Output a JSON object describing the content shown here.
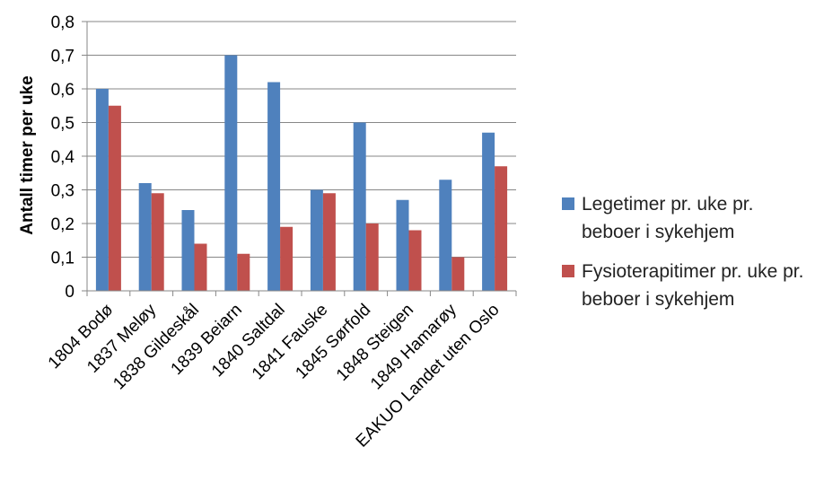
{
  "chart_data": {
    "type": "bar",
    "title": "",
    "xlabel": "",
    "ylabel": "Antall timer per uke",
    "ylim": [
      0,
      0.8
    ],
    "yticks": [
      "0",
      "0,1",
      "0,2",
      "0,3",
      "0,4",
      "0,5",
      "0,6",
      "0,7",
      "0,8"
    ],
    "grid": true,
    "legend_position": "right",
    "categories": [
      "1804 Bodø",
      "1837 Meløy",
      "1838 Gildeskål",
      "1839 Beiarn",
      "1840 Saltdal",
      "1841 Fauske",
      "1845 Sørfold",
      "1848 Steigen",
      "1849 Hamarøy",
      "EAKUO Landet uten Oslo"
    ],
    "series": [
      {
        "name": "Legetimer pr. uke pr. beboer i sykehjem",
        "color": "#4F81BD",
        "values": [
          0.6,
          0.32,
          0.24,
          0.7,
          0.62,
          0.3,
          0.5,
          0.27,
          0.33,
          0.47
        ]
      },
      {
        "name": "Fysioterapitimer pr. uke pr. beboer i sykehjem",
        "color": "#C0504D",
        "values": [
          0.55,
          0.29,
          0.14,
          0.11,
          0.19,
          0.29,
          0.2,
          0.18,
          0.1,
          0.37
        ]
      }
    ]
  }
}
